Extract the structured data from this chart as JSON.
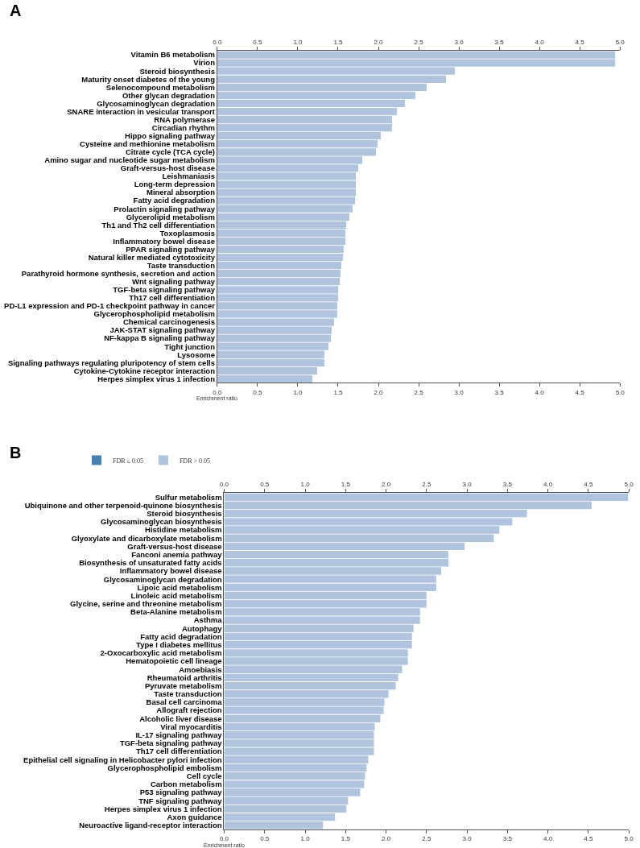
{
  "chart_data": [
    {
      "type": "bar",
      "orientation": "horizontal",
      "title": "A",
      "xlabel": "Enrichment ratio",
      "categories": [
        "Vitamin B6 metabolism",
        "Virion",
        "Steroid biosynthesis",
        "Maturity onset diabetes of the young",
        "Selenocompound metabolism",
        "Other glycan degradation",
        "Glycosaminoglycan degradation",
        "SNARE interaction in vesicular transport",
        "RNA polymerase",
        "Circadian rhythm",
        "Hippo signaling pathway",
        "Cysteine and methionine metabolism",
        "Citrate cycle (TCA cycle)",
        "Amino sugar and nucleotide sugar metabolism",
        "Graft-versus-host disease",
        "Leishmaniasis",
        "Long-term depression",
        "Mineral absorption",
        "Fatty acid degradation",
        "Prolactin signaling pathway",
        "Glycerolipid metabolism",
        "Th1 and Th2 cell differentiation",
        "Toxoplasmosis",
        "Inflammatory bowel disease",
        "PPAR signaling pathway",
        "Natural killer mediated cytotoxicity",
        "Taste transduction",
        "Parathyroid hormone synthesis, secretion and action",
        "Wnt signaling pathway",
        "TGF-beta signaling pathway",
        "Th17 cell differentiation",
        "PD-L1 expression and PD-1 checkpoint pathway in cancer",
        "Glycerophospholipid metabolism",
        "Chemical carcinogenesis",
        "JAK-STAT signaling pathway",
        "NF-kappa B signaling pathway",
        "Tight junction",
        "Lysosome",
        "Signaling pathways regulating pluripotency of stem cells",
        "Cytokine-Cytokine receptor interaction",
        "Herpes simplex virus 1 infection"
      ],
      "series": [
        {
          "color": "#b0c4de",
          "values": [
            4.94,
            4.94,
            2.95,
            2.84,
            2.6,
            2.46,
            2.33,
            2.23,
            2.17,
            2.17,
            2.03,
            1.99,
            1.97,
            1.8,
            1.75,
            1.72,
            1.72,
            1.72,
            1.71,
            1.68,
            1.64,
            1.6,
            1.59,
            1.59,
            1.57,
            1.56,
            1.54,
            1.53,
            1.52,
            1.5,
            1.5,
            1.49,
            1.49,
            1.45,
            1.42,
            1.41,
            1.38,
            1.33,
            1.33,
            1.24,
            1.18
          ]
        }
      ],
      "xlim": [
        0,
        5
      ],
      "xticks": [
        {
          "value": 0,
          "label": "0.0"
        },
        {
          "value": 0.5,
          "label": "0.5"
        },
        {
          "value": 1,
          "label": "1.0"
        },
        {
          "value": 1.5,
          "label": "1.5"
        },
        {
          "value": 2,
          "label": "2.0"
        },
        {
          "value": 2.5,
          "label": "2.5"
        },
        {
          "value": 3,
          "label": "3.0"
        },
        {
          "value": 3.5,
          "label": "3.5"
        },
        {
          "value": 4,
          "label": "4.0"
        },
        {
          "value": 4.5,
          "label": "4.5"
        },
        {
          "value": 5,
          "label": "5.0"
        }
      ],
      "x2lim": [
        0,
        5
      ],
      "x2ticks": [
        {
          "value": 0,
          "label": "0.0"
        },
        {
          "value": 0.5,
          "label": "0.5"
        },
        {
          "value": 1,
          "label": "1.0"
        },
        {
          "value": 1.5,
          "label": "1.5"
        },
        {
          "value": 2,
          "label": "2.0"
        },
        {
          "value": 2.5,
          "label": "2.5"
        },
        {
          "value": 3,
          "label": "3.0"
        },
        {
          "value": 3.5,
          "label": "3.5"
        },
        {
          "value": 4,
          "label": "4.0"
        },
        {
          "value": 4.5,
          "label": "4.5"
        },
        {
          "value": 5,
          "label": "5.0"
        }
      ]
    },
    {
      "type": "bar",
      "orientation": "horizontal",
      "title": "B",
      "xlabel": "Enrichment ratio",
      "legend": "top left",
      "categories": [
        "Sulfur metabolism",
        "Ubiquinone and other terpenoid-quinone biosynthesis",
        "Steroid biosynthesis",
        "Glycosaminoglycan biosynthesis",
        "Histidine metabolism",
        "Glyoxylate and dicarboxylate metabolism",
        "Graft-versus-host disease",
        "Fanconi anemia pathway",
        "Biosynthesis of unsaturated fatty acids",
        "Inflammatory bowel disease",
        "Glycosaminoglycan degradation",
        "Lipoic acid metabolism",
        "Linoleic acid metabolism",
        "Glycine, serine and threonine metabolism",
        "Beta-Alanine metabolism",
        "Asthma",
        "Autophagy",
        "Fatty acid degradation",
        "Type I diabetes mellitus",
        "2-Oxocarboxylic acid metabolism",
        "Hematopoietic cell lineage",
        "Amoebiasis",
        "Rheumatoid arthritis",
        "Pyruvate metabolism",
        "Taste transduction",
        "Basal cell carcinoma",
        "Allograft rejection",
        "Alcoholic liver disease",
        "Viral myocarditis",
        "IL-17 signaling pathway",
        "TGF-beta signaling pathway",
        "Th17 cell differentiation",
        "Epithelial cell signaling in Helicobacter pylori infection",
        "Glycerophospholipid embolism",
        "Cell cycle",
        "Carbon metabolism",
        "P53 signaling pathway",
        "TNF signaling pathway",
        "Herpes simplex virus 1 infection",
        "Axon guidance",
        "Neuroactive ligand-receptor interaction"
      ],
      "series": [
        {
          "name": "FDR ≤ 0.05",
          "color": "#4682b4",
          "values": [
            null,
            null,
            null,
            null,
            null,
            null,
            null,
            null,
            null,
            null,
            null,
            null,
            null,
            null,
            null,
            null,
            null,
            null,
            null,
            null,
            null,
            null,
            null,
            null,
            null,
            null,
            null,
            null,
            null,
            null,
            null,
            null,
            null,
            null,
            null,
            null,
            null,
            null,
            null,
            null,
            null
          ]
        },
        {
          "name": "FDR > 0.05",
          "color": "#b0c4de",
          "values": [
            4.99,
            4.54,
            3.74,
            3.56,
            3.4,
            3.33,
            2.97,
            2.77,
            2.77,
            2.68,
            2.62,
            2.62,
            2.5,
            2.5,
            2.42,
            2.42,
            2.34,
            2.32,
            2.32,
            2.27,
            2.27,
            2.2,
            2.15,
            2.12,
            2.03,
            1.98,
            1.97,
            1.93,
            1.86,
            1.85,
            1.85,
            1.85,
            1.78,
            1.76,
            1.74,
            1.73,
            1.68,
            1.53,
            1.51,
            1.37,
            1.22
          ]
        }
      ],
      "xlim": [
        0,
        5
      ],
      "xticks": [
        {
          "value": 0,
          "label": "0.0"
        },
        {
          "value": 0.5,
          "label": "0.5"
        },
        {
          "value": 1,
          "label": "1.0"
        },
        {
          "value": 1.5,
          "label": "1.5"
        },
        {
          "value": 2,
          "label": "2.0"
        },
        {
          "value": 2.5,
          "label": "2.5"
        },
        {
          "value": 3,
          "label": "3.0"
        },
        {
          "value": 3.5,
          "label": "3.5"
        },
        {
          "value": 4,
          "label": "4.0"
        },
        {
          "value": 4.5,
          "label": "4.5"
        },
        {
          "value": 5,
          "label": "5.0"
        }
      ],
      "x2lim": [
        0,
        5
      ],
      "x2ticks": [
        {
          "value": 0,
          "label": "0.0"
        },
        {
          "value": 0.5,
          "label": "0.5"
        },
        {
          "value": 1,
          "label": "1.0"
        },
        {
          "value": 1.5,
          "label": "1.5"
        },
        {
          "value": 2,
          "label": "2.0"
        },
        {
          "value": 2.5,
          "label": "2.5"
        },
        {
          "value": 3,
          "label": "3.0"
        },
        {
          "value": 3.5,
          "label": "3.5"
        },
        {
          "value": 4,
          "label": "4.0"
        },
        {
          "value": 4.5,
          "label": "4.5"
        },
        {
          "value": 5,
          "label": "5.0"
        }
      ]
    }
  ]
}
